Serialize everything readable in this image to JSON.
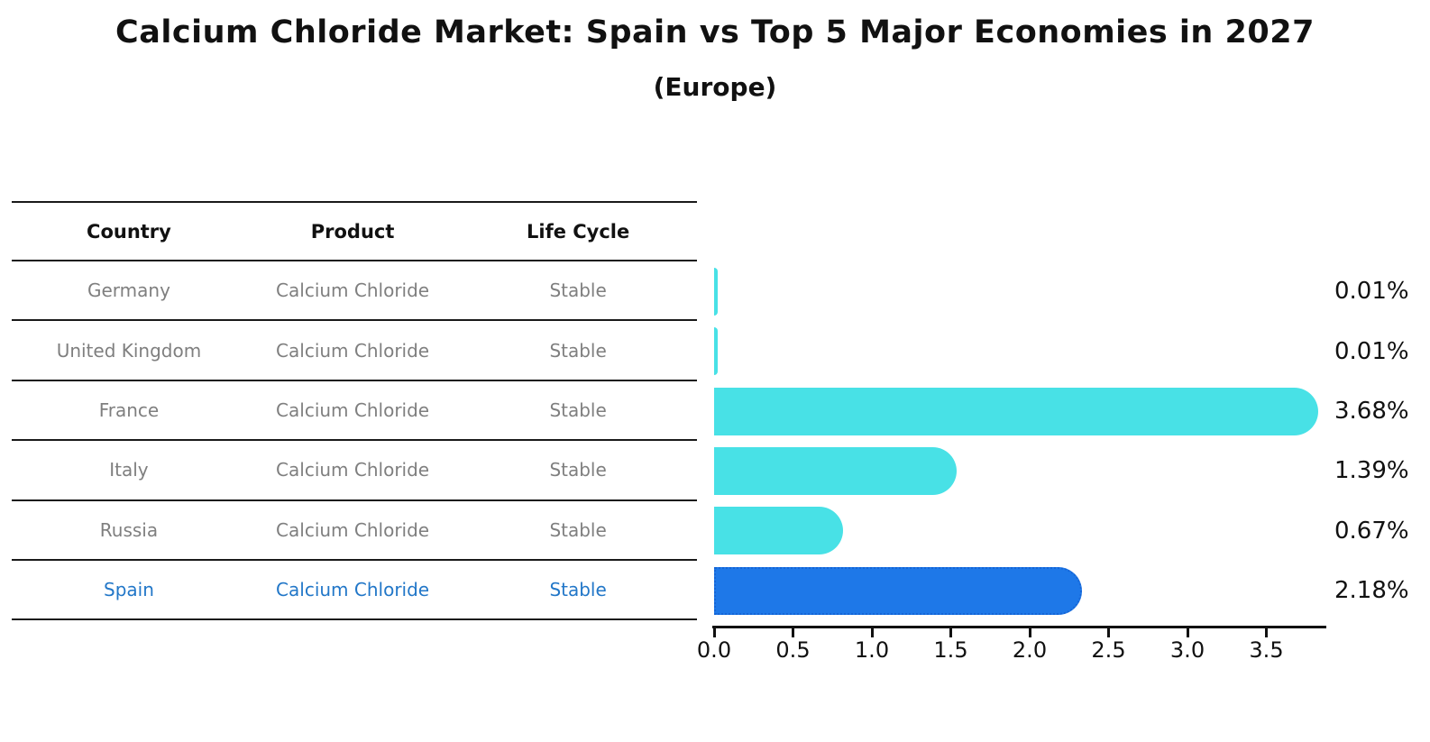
{
  "title": "Calcium Chloride Market: Spain vs Top 5 Major Economies in 2027",
  "subtitle": "(Europe)",
  "table": {
    "headers": [
      "Country",
      "Product",
      "Life Cycle"
    ],
    "rows": [
      {
        "country": "Germany",
        "product": "Calcium Chloride",
        "life_cycle": "Stable",
        "highlight": false
      },
      {
        "country": "United Kingdom",
        "product": "Calcium Chloride",
        "life_cycle": "Stable",
        "highlight": false
      },
      {
        "country": "France",
        "product": "Calcium Chloride",
        "life_cycle": "Stable",
        "highlight": false
      },
      {
        "country": "Italy",
        "product": "Calcium Chloride",
        "life_cycle": "Stable",
        "highlight": false
      },
      {
        "country": "Russia",
        "product": "Calcium Chloride",
        "life_cycle": "Stable",
        "highlight": true
      }
    ],
    "highlight_row": {
      "country": "Spain",
      "product": "Calcium Chloride",
      "life_cycle": "Stable"
    }
  },
  "chart_data": {
    "type": "bar",
    "orientation": "horizontal",
    "title": "Calcium Chloride Market: Spain vs Top 5 Major Economies in 2027",
    "subtitle": "(Europe)",
    "categories": [
      "Germany",
      "United Kingdom",
      "France",
      "Italy",
      "Russia",
      "Spain"
    ],
    "values": [
      0.01,
      0.01,
      3.68,
      1.39,
      0.67,
      2.18
    ],
    "value_labels": [
      "0.01%",
      "0.01%",
      "3.68%",
      "1.39%",
      "0.67%",
      "2.18%"
    ],
    "highlight_category": "Spain",
    "x_tick_labels": [
      "0.0",
      "0.5",
      "1.0",
      "1.5",
      "2.0",
      "2.5",
      "3.0",
      "3.5"
    ],
    "x_tick_values": [
      0.0,
      0.5,
      1.0,
      1.5,
      2.0,
      2.5,
      3.0,
      3.5
    ],
    "xlim": [
      0,
      3.87
    ],
    "grid": false,
    "legend": "none",
    "colors": {
      "bar": "#4ade e6",
      "bar_fill": "#48e1e6",
      "highlight_bar_fill": "#1e78e8",
      "highlight_bar_border": "#1565d6",
      "row_text": "#7f7f7f",
      "highlight_text": "#2277c8",
      "axis": "#111111"
    }
  }
}
